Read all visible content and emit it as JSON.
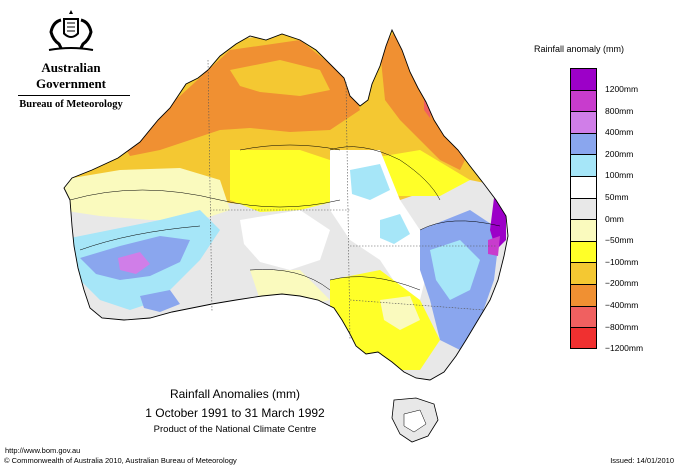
{
  "header": {
    "government": "Australian Government",
    "bureau": "Bureau of Meteorology"
  },
  "legend": {
    "title": "Rainfall anomaly (mm)",
    "labels": [
      "1200mm",
      "800mm",
      "400mm",
      "200mm",
      "100mm",
      "50mm",
      "0mm",
      "−50mm",
      "−100mm",
      "−200mm",
      "−400mm",
      "−800mm",
      "−1200mm"
    ],
    "colors": [
      "#9c00c8",
      "#c83ccd",
      "#d07ee8",
      "#8aa6ee",
      "#a6e6f8",
      "#ffffff",
      "#e8e8e8",
      "#fafabe",
      "#ffff28",
      "#f4c832",
      "#f09032",
      "#f06060",
      "#f03030"
    ]
  },
  "map": {
    "title": "Rainfall Anomalies (mm)",
    "period": "1 October 1991 to 31 March 1992",
    "product": "Product of the National Climate Centre"
  },
  "footer": {
    "url": "http://www.bom.gov.au",
    "copyright": "© Commonwealth of Australia 2010, Australian Bureau of Meteorology",
    "issued": "Issued: 14/01/2010"
  }
}
